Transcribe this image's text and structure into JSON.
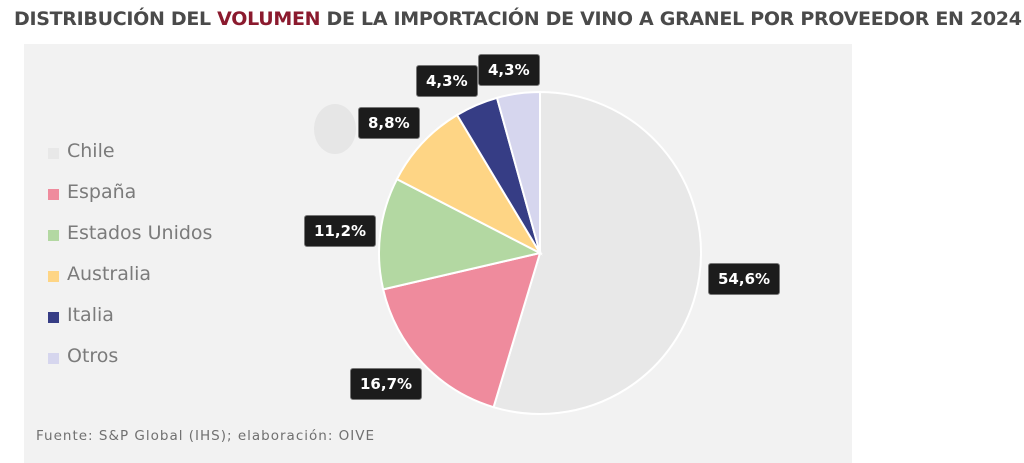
{
  "title": {
    "before": "DISTRIBUCIÓN DEL ",
    "highlight": "VOLUMEN",
    "after": " DE LA IMPORTACIÓN DE VINO A GRANEL POR PROVEEDOR EN 2024"
  },
  "source": "Fuente: S&P Global (IHS); elaboración: OIVE",
  "chart_data": {
    "type": "pie",
    "title": "DISTRIBUCIÓN DEL VOLUMEN DE LA IMPORTACIÓN DE VINO A GRANEL POR PROVEEDOR EN 2024",
    "legend_position": "left",
    "slices": [
      {
        "name": "Chile",
        "value": 54.6,
        "label": "54,6%",
        "color": "#e8e8e8"
      },
      {
        "name": "España",
        "value": 16.7,
        "label": "16,7%",
        "color": "#ef8b9d"
      },
      {
        "name": "Estados Unidos",
        "value": 11.2,
        "label": "11,2%",
        "color": "#b3d8a2"
      },
      {
        "name": "Australia",
        "value": 8.8,
        "label": "8,8%",
        "color": "#fed585"
      },
      {
        "name": "Italia",
        "value": 4.3,
        "label": "4,3%",
        "color": "#363d85"
      },
      {
        "name": "Otros",
        "value": 4.3,
        "label": "4,3%",
        "color": "#d6d6ee"
      }
    ]
  }
}
